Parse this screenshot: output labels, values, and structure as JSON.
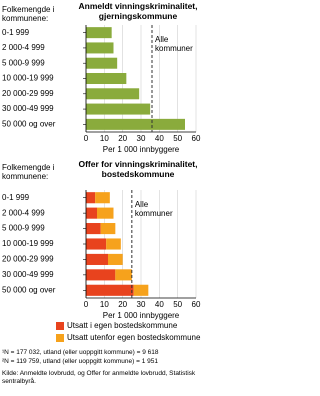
{
  "chart_data": [
    {
      "type": "hbar",
      "title": "Anmeldt vinningskriminalitet, gjerningskommune",
      "ylabel": "Folkemengde i kommunene:",
      "xlabel": "Per 1 000 innbyggere",
      "categories": [
        "0-1 999",
        "2 000-4 999",
        "5 000-9 999",
        "10 000-19 999",
        "20 000-29 999",
        "30 000-49 999",
        "50 000 og over"
      ],
      "values": [
        14,
        15,
        17,
        22,
        29,
        35,
        54
      ],
      "color": "#8aab3c",
      "xlim": [
        0,
        60
      ],
      "xticks": [
        0,
        10,
        20,
        30,
        40,
        50,
        60
      ],
      "grid": true,
      "reference_line": {
        "value": 36,
        "label": "Alle kommuner"
      }
    },
    {
      "type": "stacked_hbar",
      "title": "Offer for vinningskriminalitet, bostedskommune",
      "ylabel": "Folkemengde i kommunene:",
      "xlabel": "Per 1 000 innbyggere",
      "categories": [
        "0-1 999",
        "2 000-4 999",
        "5 000-9 999",
        "10 000-19 999",
        "20 000-29 999",
        "30 000-49 999",
        "50 000 og over"
      ],
      "series": [
        {
          "name": "Utsatt i egen bostedskommune",
          "color": "#e8431e",
          "values": [
            5,
            6,
            8,
            11,
            12,
            16,
            26
          ]
        },
        {
          "name": "Utsatt utenfor egen bostedskommune",
          "color": "#f6a21c",
          "values": [
            8,
            9,
            8,
            8,
            8,
            9,
            8
          ]
        }
      ],
      "xlim": [
        0,
        60
      ],
      "xticks": [
        0,
        10,
        20,
        30,
        40,
        50,
        60
      ],
      "grid": true,
      "reference_line": {
        "value": 25,
        "label": "Alle kommuner"
      }
    }
  ],
  "notes": [
    "¹N = 177 032, utland (eller uoppgitt kommune) = 9 618",
    "²N = 119 759, utland (eller uoppgitt kommune) = 1 951"
  ],
  "source": "Kilde: Anmeldte lovbrudd, og Offer for anmeldte lovbrudd, Statistisk sentralbyrå."
}
